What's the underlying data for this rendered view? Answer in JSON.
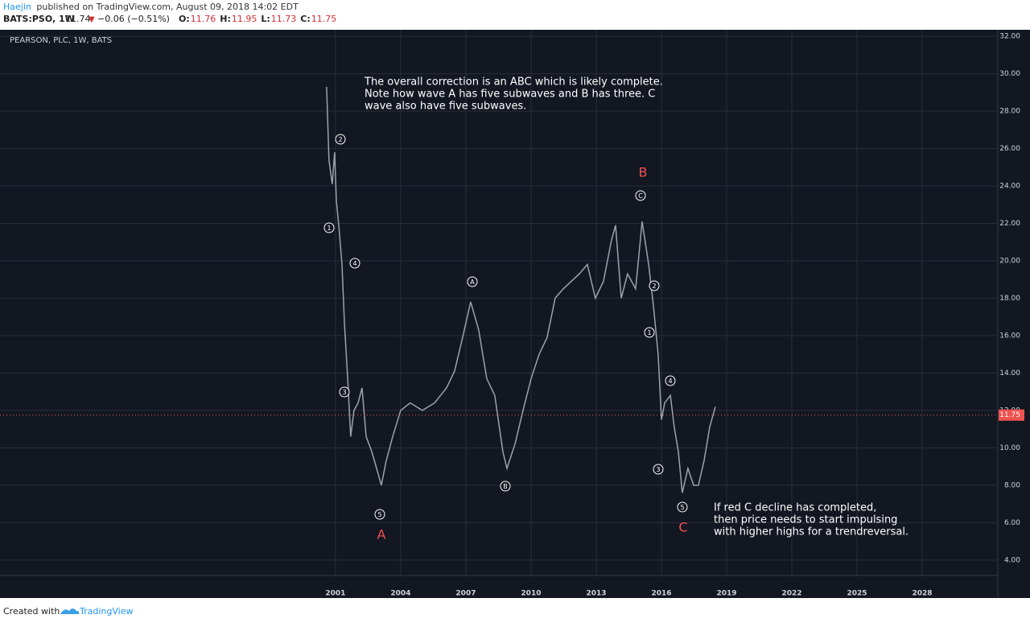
{
  "header": {
    "author": "Haejin",
    "published": "published on TradingView.com, August 09, 2018 14:02 EDT",
    "symbol": "BATS:PSO, 1W",
    "last": "11.74",
    "change": "−0.06 (−0.51%)",
    "ohlc": [
      {
        "label": "O:",
        "value": "11.76"
      },
      {
        "label": "H:",
        "value": "11.95"
      },
      {
        "label": "L:",
        "value": "11.73"
      },
      {
        "label": "C:",
        "value": "11.75"
      }
    ]
  },
  "chart_data": {
    "type": "line",
    "title": "PEARSON, PLC, 1W, BATS",
    "color": "#9aa3ad",
    "x": [
      2000.59,
      2000.7,
      2000.85,
      2000.96,
      2001.04,
      2001.15,
      2001.3,
      2001.41,
      2001.56,
      2001.7,
      2001.85,
      2002.04,
      2002.22,
      2002.41,
      2002.67,
      2002.89,
      2003.11,
      2003.33,
      2003.63,
      2004.0,
      2004.44,
      2005.0,
      2005.56,
      2006.11,
      2006.48,
      2006.85,
      2007.22,
      2007.59,
      2007.96,
      2008.33,
      2008.7,
      2008.89,
      2009.26,
      2009.63,
      2010.0,
      2010.37,
      2010.74,
      2011.11,
      2011.48,
      2011.85,
      2012.22,
      2012.59,
      2012.96,
      2013.33,
      2013.7,
      2013.89,
      2014.15,
      2014.44,
      2014.81,
      2015.11,
      2015.41,
      2015.63,
      2015.85,
      2016.0,
      2016.15,
      2016.41,
      2016.59,
      2016.78,
      2016.96,
      2017.22,
      2017.48,
      2017.7,
      2017.96,
      2018.22,
      2018.48
    ],
    "values": [
      29.3,
      25.4,
      24.1,
      25.8,
      23.2,
      21.9,
      19.8,
      16.7,
      13.7,
      10.6,
      12.0,
      12.4,
      13.2,
      10.6,
      9.8,
      8.9,
      8.0,
      9.3,
      10.6,
      12.0,
      12.4,
      12.0,
      12.4,
      13.2,
      14.1,
      15.9,
      17.8,
      16.3,
      13.7,
      12.8,
      9.8,
      8.9,
      10.2,
      12.0,
      13.7,
      15.0,
      15.9,
      18.0,
      18.5,
      18.9,
      19.3,
      19.8,
      18.0,
      18.9,
      21.1,
      21.9,
      18.0,
      19.3,
      18.5,
      22.1,
      19.8,
      17.6,
      15.0,
      11.5,
      12.4,
      12.8,
      11.1,
      9.8,
      7.6,
      8.9,
      8.0,
      8.0,
      9.3,
      11.1,
      12.2
    ],
    "xlim": [
      1985.56,
      2031.48
    ],
    "ylim": [
      1.97,
      32.35
    ],
    "xticks": [
      2001,
      2004,
      2007,
      2010,
      2013,
      2016,
      2019,
      2022,
      2025,
      2028
    ],
    "yticks": [
      {
        "value": 4,
        "label": "4.00"
      },
      {
        "value": 6,
        "label": "6.00"
      },
      {
        "value": 8,
        "label": "8.00"
      },
      {
        "value": 10,
        "label": "10.00"
      },
      {
        "value": 12,
        "label": "12.00"
      },
      {
        "value": 14,
        "label": "14.00"
      },
      {
        "value": 16,
        "label": "16.00"
      },
      {
        "value": 18,
        "label": "18.00"
      },
      {
        "value": 20,
        "label": "20.00"
      },
      {
        "value": 22,
        "label": "22.00"
      },
      {
        "value": 24,
        "label": "24.00"
      },
      {
        "value": 26,
        "label": "26.00"
      },
      {
        "value": 28,
        "label": "28.00"
      },
      {
        "value": 30,
        "label": "30.00"
      },
      {
        "value": 32,
        "label": "32.00"
      }
    ],
    "grid": true,
    "last_price": {
      "value": 11.75,
      "label": "11.75"
    },
    "annotations": [
      [
        "The overall correction is an ABC which is likely complete.",
        "Note how wave A has five subwaves and B has three. C",
        "wave also have five subwaves."
      ],
      [
        "If red C decline has completed,",
        "then price needs to start impulsing",
        "with higher highs for a trendreversal."
      ]
    ],
    "wave_labels": [
      "1",
      "2",
      "4",
      "3",
      "5",
      "A",
      "A",
      "B",
      "B",
      "C",
      "2",
      "1",
      "4",
      "3",
      "5",
      "C"
    ]
  },
  "footer": {
    "created": "Created with",
    "brand": "TradingView"
  }
}
